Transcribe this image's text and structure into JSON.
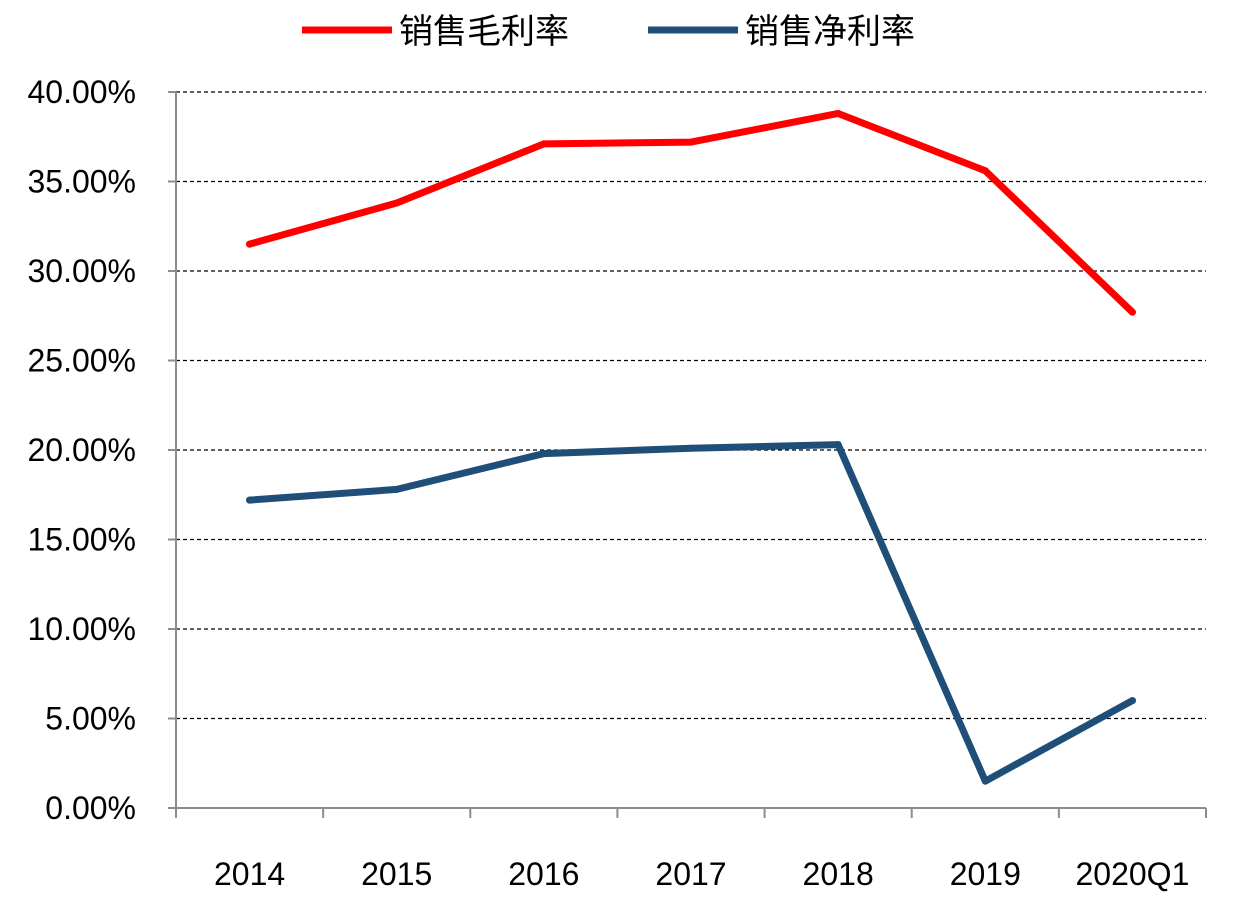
{
  "chart_data": {
    "type": "line",
    "categories": [
      "2014",
      "2015",
      "2016",
      "2017",
      "2018",
      "2019",
      "2020Q1"
    ],
    "series": [
      {
        "name": "销售毛利率",
        "color": "#ff0000",
        "values": [
          31.5,
          33.8,
          37.1,
          37.2,
          38.8,
          35.6,
          27.7
        ]
      },
      {
        "name": "销售净利率",
        "color": "#1f4e79",
        "values": [
          17.2,
          17.8,
          19.8,
          20.1,
          20.3,
          1.5,
          6.0
        ]
      }
    ],
    "y_ticks": [
      0,
      5,
      10,
      15,
      20,
      25,
      30,
      35,
      40
    ],
    "y_tick_labels": [
      "0.00%",
      "5.00%",
      "10.00%",
      "15.00%",
      "20.00%",
      "25.00%",
      "30.00%",
      "35.00%",
      "40.00%"
    ],
    "ylim": [
      0,
      40
    ],
    "grid": "horizontal-dashed",
    "legend_position": "top"
  }
}
